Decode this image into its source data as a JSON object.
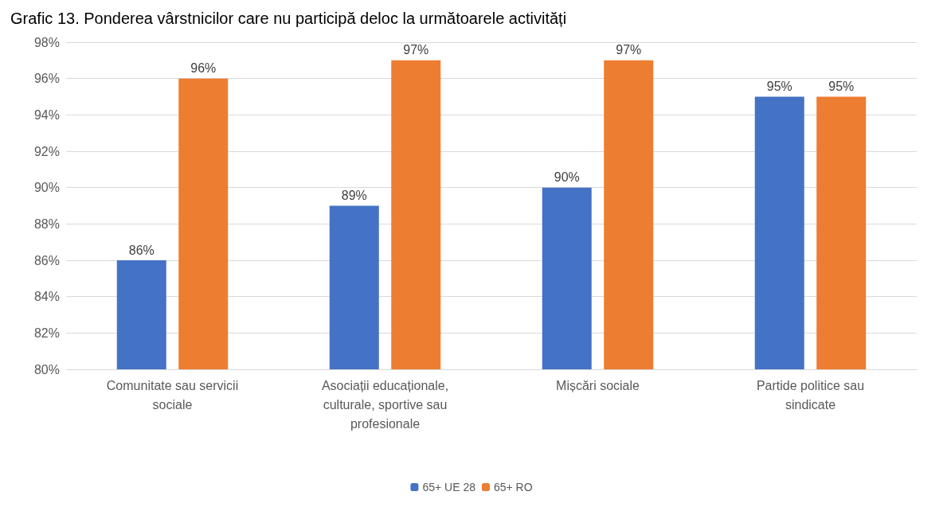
{
  "chart_data": {
    "type": "bar",
    "title": "Grafic 13. Ponderea vârstnicilor care nu participă deloc la următoarele activități",
    "categories": [
      "Comunitate sau servicii sociale",
      "Asociații educaționale, culturale, sportive sau profesionale",
      "Mișcări sociale",
      "Partide politice sau sindicate"
    ],
    "series": [
      {
        "name": "65+ UE 28",
        "color": "#4472c4",
        "values": [
          86,
          89,
          90,
          95
        ],
        "value_labels": [
          "86%",
          "89%",
          "90%",
          "95%"
        ]
      },
      {
        "name": "65+ RO",
        "color": "#ed7d31",
        "values": [
          96,
          97,
          97,
          95
        ],
        "value_labels": [
          "96%",
          "97%",
          "97%",
          "95%"
        ]
      }
    ],
    "ylim": [
      80,
      98
    ],
    "yticks": [
      {
        "value": 80,
        "label": "80%"
      },
      {
        "value": 82,
        "label": "82%"
      },
      {
        "value": 84,
        "label": "84%"
      },
      {
        "value": 86,
        "label": "86%"
      },
      {
        "value": 88,
        "label": "88%"
      },
      {
        "value": 90,
        "label": "90%"
      },
      {
        "value": 92,
        "label": "92%"
      },
      {
        "value": 94,
        "label": "94%"
      },
      {
        "value": 96,
        "label": "96%"
      },
      {
        "value": 98,
        "label": "98%"
      }
    ],
    "grid": "y",
    "legend": "bottom"
  }
}
